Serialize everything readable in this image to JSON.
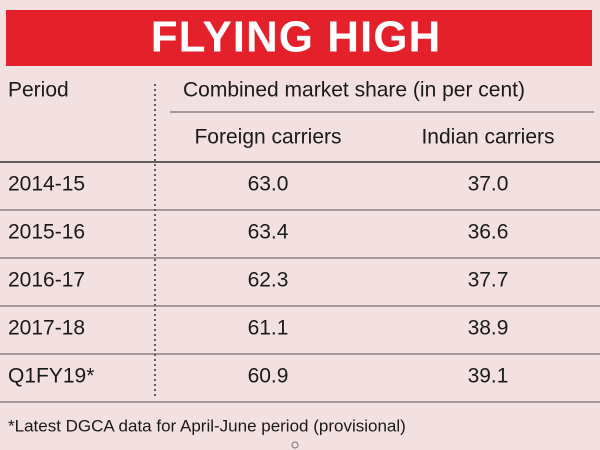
{
  "header": {
    "title": "FLYING HIGH",
    "period": "Period",
    "group": "Combined market share (in per cent)",
    "columns": [
      "Foreign carriers",
      "Indian carriers"
    ]
  },
  "table": {
    "rows": [
      [
        "2014-15",
        "63.0",
        "37.0"
      ],
      [
        "2015-16",
        "63.4",
        "36.6"
      ],
      [
        "2016-17",
        "62.3",
        "37.7"
      ],
      [
        "2017-18",
        "61.1",
        "38.9"
      ],
      [
        "Q1FY19*",
        "60.9",
        "39.1"
      ]
    ]
  },
  "footnote": "*Latest DGCA data for April-June period (provisional)"
}
